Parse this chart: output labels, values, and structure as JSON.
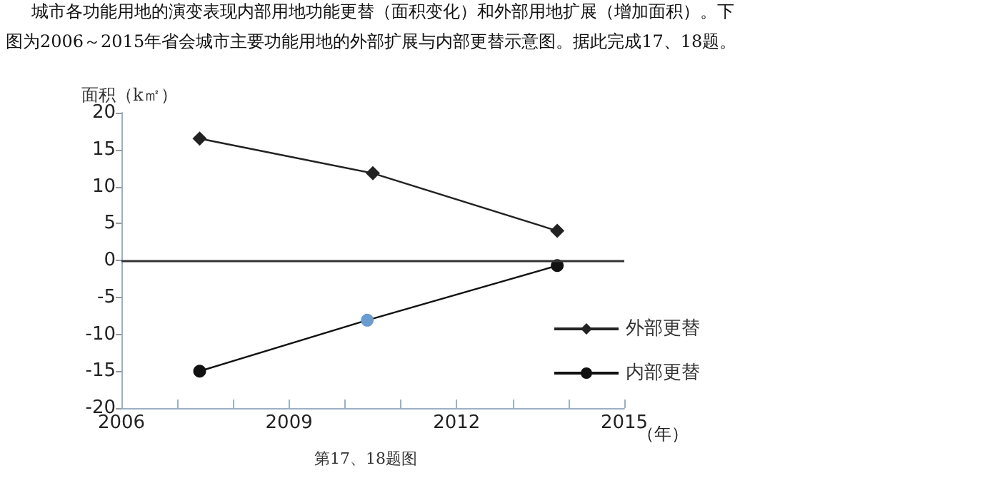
{
  "chart_data": {
    "type": "line",
    "title": "城市各功能用地的演变表现内部用地功能更替（面积变化）和外部用地扩展（增加面积）。下",
    "subtitle": "图为2006～2015年省会城市主要功能用地的外部扩展与内部更替示意图。据此完成17、18题。",
    "ylabel": "面积（k㎡）",
    "xlabel": "（年）",
    "annotations": [
      "第17、18题图"
    ],
    "x": [
      2007.4,
      2010.5,
      2013.8
    ],
    "series": [
      {
        "name": "外部更替",
        "color": "#222222",
        "marker": "diamond",
        "values": [
          16.5,
          11.8,
          4
        ]
      },
      {
        "name": "内部更替",
        "color": "#111111",
        "marker": "circle",
        "x": [
          2007.4,
          2010.4,
          2013.8
        ],
        "values": [
          -15,
          -8.1,
          -0.7
        ],
        "colors": [
          "#111111",
          "#6a9cd0",
          "#111111"
        ]
      }
    ],
    "xlim": [
      2006,
      2015
    ],
    "xticks": [
      2006,
      {
        "value": 2007,
        "label": null
      },
      {
        "value": 2008,
        "label": null
      },
      2009,
      {
        "value": 2010,
        "label": null
      },
      {
        "value": 2011,
        "label": null
      },
      2012,
      {
        "value": 2013,
        "label": null
      },
      {
        "value": 2014,
        "label": null
      },
      2015
    ],
    "ylim": [
      -20,
      20
    ],
    "yticks": [
      -20,
      -15,
      -10,
      -5,
      0,
      5,
      10,
      15,
      20
    ],
    "ref_lines": [
      {
        "axis": "y",
        "value": 0,
        "color": "#333333"
      }
    ],
    "grid": false,
    "legend": "bottom right",
    "line_style": "solid"
  }
}
